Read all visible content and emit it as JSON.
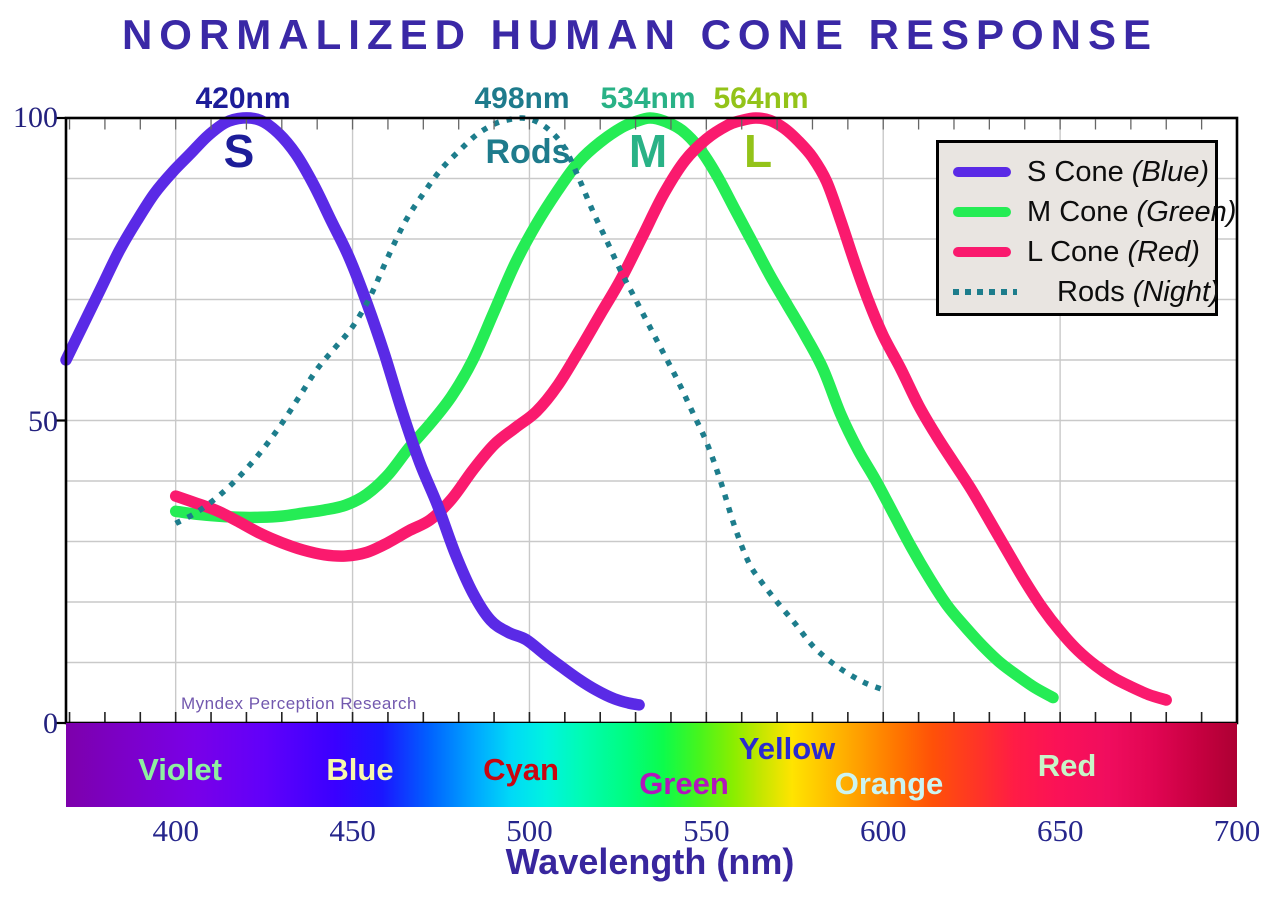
{
  "title": "NORMALIZED HUMAN CONE RESPONSE",
  "watermark": "Myndex Perception Research",
  "colors": {
    "title": "#3a28a6",
    "axis_tick_labels": "#26268c",
    "x_axis_label": "#38269e",
    "grid": "#c9c9c9",
    "plot_border": "#000000",
    "legend_bg": "#e9e5e1",
    "watermark": "#7258ae",
    "s_cone": "#5a2ae6",
    "m_cone": "#25ec55",
    "l_cone": "#fa1a6e",
    "rods": "#1d7d8c"
  },
  "y_axis": {
    "labels": [
      "100",
      "50",
      "0"
    ]
  },
  "x_axis": {
    "labels": [
      "400",
      "450",
      "500",
      "550",
      "600",
      "650",
      "700"
    ],
    "title": "Wavelength (nm)"
  },
  "peak_labels": [
    {
      "text": "420nm",
      "color": "#1d1d99"
    },
    {
      "text": "498nm",
      "color": "#1e7b8c"
    },
    {
      "text": "534nm",
      "color": "#29b286"
    },
    {
      "text": "564nm",
      "color": "#93c319"
    }
  ],
  "curve_letters": [
    {
      "text": "S",
      "color": "#1d1d99"
    },
    {
      "text": "Rods",
      "color": "#1e7b8c"
    },
    {
      "text": "M",
      "color": "#29b286"
    },
    {
      "text": "L",
      "color": "#93c319"
    }
  ],
  "legend": {
    "items": [
      {
        "name": "S Cone",
        "qualifier": "(Blue)",
        "color": "#5a2ae6",
        "style": "solid"
      },
      {
        "name": "M Cone",
        "qualifier": "(Green)",
        "color": "#25ec55",
        "style": "solid"
      },
      {
        "name": "L Cone",
        "qualifier": "(Red)",
        "color": "#fa1a6e",
        "style": "solid"
      },
      {
        "name": "Rods",
        "qualifier": "(Night)",
        "color": "#1d7d8c",
        "style": "dotted"
      }
    ]
  },
  "spectrum_bar": {
    "labels": [
      {
        "text": "Violet",
        "color": "#8ef0a0"
      },
      {
        "text": "Blue",
        "color": "#f8f8ac"
      },
      {
        "text": "Cyan",
        "color": "#c9050f"
      },
      {
        "text": "Green",
        "color": "#b215bc"
      },
      {
        "text": "Yellow",
        "color": "#2a2ad0"
      },
      {
        "text": "Orange",
        "color": "#ccf4f2"
      },
      {
        "text": "Red",
        "color": "#c8f5c8"
      }
    ]
  },
  "chart_data": {
    "type": "line",
    "title": "NORMALIZED HUMAN CONE RESPONSE",
    "xlabel": "Wavelength (nm)",
    "ylabel": "",
    "xlim": [
      369,
      700
    ],
    "ylim": [
      0,
      100
    ],
    "x_ticks": [
      400,
      450,
      500,
      550,
      600,
      650,
      700
    ],
    "y_ticks": [
      0,
      50,
      100
    ],
    "grid": {
      "y_interval": 10,
      "x_interval_nm": 50,
      "minor_tick_nm": 10
    },
    "legend_position": "top-right",
    "series": [
      {
        "name": "S Cone (Blue)",
        "label": "S",
        "peak_nm": 420,
        "peak_label": "420nm",
        "color": "#5a2ae6",
        "style": "solid",
        "points": [
          [
            369,
            60
          ],
          [
            374,
            66
          ],
          [
            379,
            72
          ],
          [
            384,
            78
          ],
          [
            389,
            83
          ],
          [
            394,
            87.5
          ],
          [
            399,
            91
          ],
          [
            404,
            94
          ],
          [
            409,
            97
          ],
          [
            414,
            99.2
          ],
          [
            419,
            100
          ],
          [
            424,
            99.6
          ],
          [
            429,
            97.5
          ],
          [
            434,
            94
          ],
          [
            439,
            89
          ],
          [
            444,
            83
          ],
          [
            449,
            77
          ],
          [
            454,
            69.5
          ],
          [
            459,
            61
          ],
          [
            464,
            51.5
          ],
          [
            469,
            43
          ],
          [
            474,
            36
          ],
          [
            479,
            28
          ],
          [
            484,
            21.5
          ],
          [
            489,
            17
          ],
          [
            494,
            15
          ],
          [
            499,
            13.8
          ],
          [
            504,
            11.5
          ],
          [
            509,
            9.3
          ],
          [
            514,
            7.2
          ],
          [
            519,
            5.4
          ],
          [
            524,
            4
          ],
          [
            528,
            3.3
          ],
          [
            531,
            3
          ]
        ]
      },
      {
        "name": "M Cone (Green)",
        "label": "M",
        "peak_nm": 534,
        "peak_label": "534nm",
        "color": "#25ec55",
        "style": "solid",
        "points": [
          [
            400,
            35
          ],
          [
            406,
            34.5
          ],
          [
            412,
            34.2
          ],
          [
            418,
            34
          ],
          [
            424,
            34
          ],
          [
            430,
            34.2
          ],
          [
            436,
            34.7
          ],
          [
            442,
            35.2
          ],
          [
            448,
            36
          ],
          [
            454,
            37.8
          ],
          [
            460,
            41
          ],
          [
            466,
            45.5
          ],
          [
            472,
            49.5
          ],
          [
            478,
            54
          ],
          [
            484,
            60
          ],
          [
            490,
            68
          ],
          [
            496,
            76
          ],
          [
            502,
            82.5
          ],
          [
            508,
            88
          ],
          [
            514,
            92.8
          ],
          [
            520,
            96
          ],
          [
            526,
            98.4
          ],
          [
            530,
            99.4
          ],
          [
            534,
            100
          ],
          [
            538,
            99.5
          ],
          [
            543,
            98
          ],
          [
            548,
            95
          ],
          [
            553,
            90.5
          ],
          [
            558,
            85
          ],
          [
            563,
            79.5
          ],
          [
            568,
            74
          ],
          [
            573,
            69
          ],
          [
            578,
            64
          ],
          [
            583,
            58.5
          ],
          [
            588,
            51
          ],
          [
            593,
            45
          ],
          [
            598,
            40
          ],
          [
            603,
            34.5
          ],
          [
            608,
            29
          ],
          [
            613,
            24
          ],
          [
            618,
            19.5
          ],
          [
            623,
            16
          ],
          [
            628,
            12.8
          ],
          [
            633,
            10
          ],
          [
            638,
            7.8
          ],
          [
            643,
            5.8
          ],
          [
            648,
            4.2
          ]
        ]
      },
      {
        "name": "L Cone (Red)",
        "label": "L",
        "peak_nm": 564,
        "peak_label": "564nm",
        "color": "#fa1a6e",
        "style": "solid",
        "points": [
          [
            400,
            37.5
          ],
          [
            406,
            36.3
          ],
          [
            412,
            35
          ],
          [
            418,
            33.2
          ],
          [
            424,
            31.3
          ],
          [
            430,
            29.8
          ],
          [
            436,
            28.6
          ],
          [
            442,
            27.8
          ],
          [
            448,
            27.6
          ],
          [
            454,
            28.2
          ],
          [
            460,
            29.8
          ],
          [
            466,
            31.8
          ],
          [
            472,
            33.6
          ],
          [
            478,
            37
          ],
          [
            484,
            41.8
          ],
          [
            490,
            46
          ],
          [
            496,
            48.8
          ],
          [
            502,
            51.5
          ],
          [
            508,
            55.8
          ],
          [
            514,
            61.5
          ],
          [
            520,
            67.5
          ],
          [
            526,
            73.5
          ],
          [
            532,
            80.5
          ],
          [
            538,
            87.5
          ],
          [
            544,
            93
          ],
          [
            550,
            96.5
          ],
          [
            556,
            98.8
          ],
          [
            560,
            99.6
          ],
          [
            564,
            100
          ],
          [
            568,
            99.6
          ],
          [
            572,
            98.3
          ],
          [
            576,
            96.2
          ],
          [
            580,
            93.5
          ],
          [
            584,
            89.5
          ],
          [
            588,
            83
          ],
          [
            592,
            76
          ],
          [
            596,
            69.5
          ],
          [
            600,
            64
          ],
          [
            605,
            58.5
          ],
          [
            610,
            52.5
          ],
          [
            615,
            47.5
          ],
          [
            620,
            43
          ],
          [
            625,
            38.5
          ],
          [
            630,
            33.5
          ],
          [
            635,
            28.5
          ],
          [
            640,
            23.5
          ],
          [
            645,
            19
          ],
          [
            650,
            15.2
          ],
          [
            655,
            12
          ],
          [
            660,
            9.5
          ],
          [
            665,
            7.5
          ],
          [
            670,
            6
          ],
          [
            675,
            4.7
          ],
          [
            680,
            3.8
          ]
        ]
      },
      {
        "name": "Rods (Night)",
        "label": "Rods",
        "peak_nm": 498,
        "peak_label": "498nm",
        "color": "#1d7d8c",
        "style": "dotted",
        "points": [
          [
            400,
            33
          ],
          [
            405,
            34.5
          ],
          [
            410,
            36.5
          ],
          [
            415,
            39
          ],
          [
            420,
            42
          ],
          [
            425,
            45.5
          ],
          [
            430,
            49.5
          ],
          [
            435,
            54
          ],
          [
            440,
            58.5
          ],
          [
            445,
            62
          ],
          [
            450,
            65.5
          ],
          [
            455,
            70.5
          ],
          [
            460,
            77
          ],
          [
            465,
            83
          ],
          [
            470,
            87.5
          ],
          [
            475,
            91.5
          ],
          [
            480,
            94.5
          ],
          [
            485,
            97.2
          ],
          [
            490,
            99
          ],
          [
            494,
            99.7
          ],
          [
            498,
            100
          ],
          [
            502,
            99.4
          ],
          [
            506,
            97.8
          ],
          [
            510,
            95
          ],
          [
            514,
            90
          ],
          [
            518,
            84.5
          ],
          [
            522,
            79.5
          ],
          [
            526,
            74.5
          ],
          [
            530,
            70
          ],
          [
            534,
            65.5
          ],
          [
            538,
            61
          ],
          [
            542,
            56.5
          ],
          [
            546,
            51.5
          ],
          [
            550,
            46.5
          ],
          [
            554,
            40
          ],
          [
            558,
            32.5
          ],
          [
            562,
            26.5
          ],
          [
            566,
            23
          ],
          [
            570,
            20
          ],
          [
            575,
            16.5
          ],
          [
            580,
            12.8
          ],
          [
            585,
            10.2
          ],
          [
            590,
            8.2
          ],
          [
            595,
            6.6
          ],
          [
            600,
            5.5
          ]
        ]
      }
    ]
  }
}
